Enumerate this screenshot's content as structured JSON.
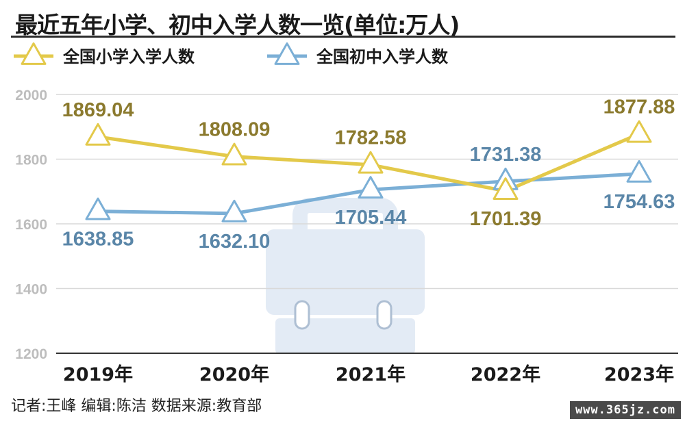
{
  "header": {
    "title": "最近五年小学、初中入学人数一览(单位:万人)"
  },
  "footer": {
    "credit": "记者:王峰  编辑:陈洁  数据来源:教育部",
    "watermark": "www.365jz.com"
  },
  "colors": {
    "primary_series": "#e3c94a",
    "secondary_series": "#7bafd6",
    "primary_label": "#8b7a2e",
    "secondary_label": "#5a86a8",
    "grid": "#d9d9d9",
    "tick": "#bdbdbd",
    "background_icon": "#e3ebf5"
  },
  "icons": {
    "background": "briefcase-icon",
    "legend_marker": "triangle-marker-icon"
  },
  "chart_data": {
    "type": "line",
    "categories": [
      "2019年",
      "2020年",
      "2021年",
      "2022年",
      "2023年"
    ],
    "ylim": [
      1200,
      2000
    ],
    "yticks": [
      "1200",
      "1400",
      "1600",
      "1800",
      "2000"
    ],
    "grid": true,
    "legend_position": "top-left",
    "series": [
      {
        "name": "全国小学入学人数",
        "values": [
          1869.04,
          1808.09,
          1782.58,
          1701.39,
          1877.88
        ],
        "labels": [
          "1869.04",
          "1808.09",
          "1782.58",
          "1701.39",
          "1877.88"
        ],
        "label_positions": [
          "above",
          "above",
          "above",
          "below",
          "above"
        ]
      },
      {
        "name": "全国初中入学人数",
        "values": [
          1638.85,
          1632.1,
          1705.44,
          1731.38,
          1754.63
        ],
        "labels": [
          "1638.85",
          "1632.10",
          "1705.44",
          "1731.38",
          "1754.63"
        ],
        "label_positions": [
          "below",
          "below",
          "below",
          "above",
          "below"
        ]
      }
    ]
  }
}
